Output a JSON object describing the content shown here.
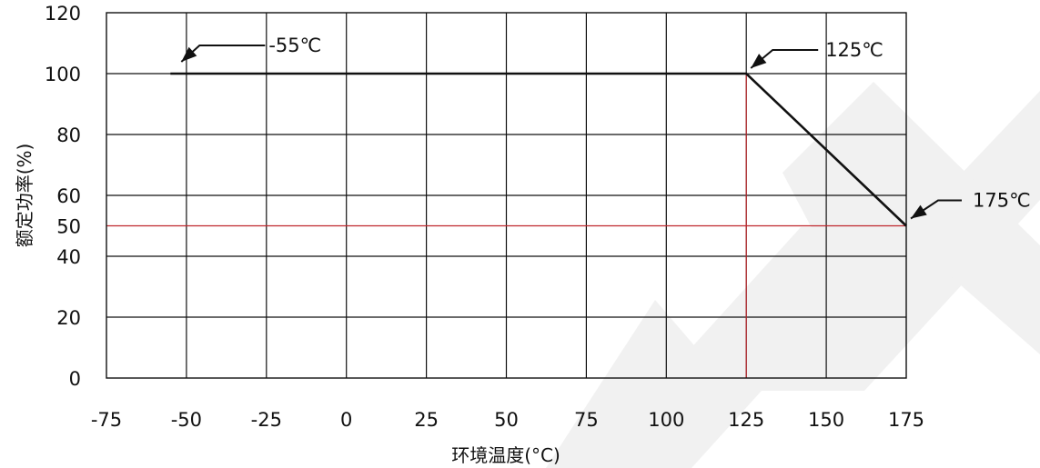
{
  "chart_data": {
    "type": "line",
    "title": "",
    "xlabel": "环境温度(°C)",
    "ylabel": "额定功率(%)",
    "xlim": [
      -75,
      175
    ],
    "ylim": [
      0,
      120
    ],
    "x_ticks": [
      -75,
      -50,
      -25,
      0,
      25,
      50,
      75,
      100,
      125,
      150,
      175
    ],
    "y_ticks": [
      0,
      20,
      40,
      50,
      60,
      80,
      100,
      120
    ],
    "grid": true,
    "series": [
      {
        "x": [
          -55,
          125,
          175
        ],
        "y": [
          100,
          100,
          50
        ],
        "color": "#111111"
      }
    ],
    "reference_lines": {
      "color": "#c0272d",
      "x": 125,
      "y": 50
    },
    "annotations": [
      {
        "text": "-55℃",
        "x": -55,
        "y": 100
      },
      {
        "text": "125℃",
        "x": 125,
        "y": 100
      },
      {
        "text": "175℃",
        "x": 175,
        "y": 50
      }
    ],
    "watermark_color": "#f1f1f1"
  }
}
